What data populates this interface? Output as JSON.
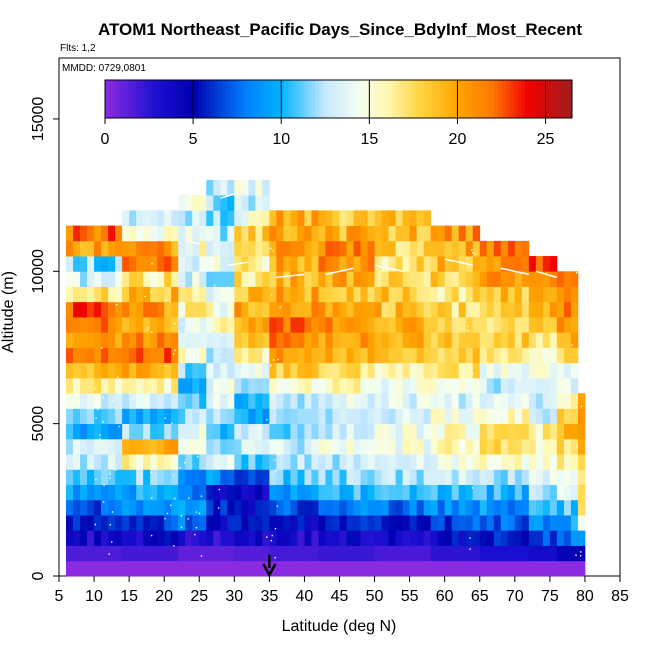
{
  "chart_data": {
    "type": "heatmap",
    "title": "ATOM1 Northeast_Pacific Days_Since_BdyInf_Most_Recent",
    "subtitle_flights": "Flts: 1,2",
    "subtitle_dates": "MMDD: 0729,0801",
    "xlabel": "Latitude (deg N)",
    "ylabel": "Altitude (m)",
    "xlim": [
      5,
      85
    ],
    "ylim": [
      0,
      17000
    ],
    "xticks": [
      5,
      10,
      15,
      20,
      25,
      30,
      35,
      40,
      45,
      50,
      55,
      60,
      65,
      70,
      75,
      80,
      85
    ],
    "yticks": [
      0,
      5000,
      10000,
      15000
    ],
    "colorbar": {
      "range": [
        0,
        26.5
      ],
      "ticks": [
        0,
        5,
        10,
        15,
        20,
        25
      ],
      "stops": [
        {
          "v": 0,
          "color": "#8a2be2"
        },
        {
          "v": 3,
          "color": "#1a0fd0"
        },
        {
          "v": 5,
          "color": "#0000b0"
        },
        {
          "v": 8,
          "color": "#0080ff"
        },
        {
          "v": 10,
          "color": "#00b4ff"
        },
        {
          "v": 12.5,
          "color": "#c8e8ff"
        },
        {
          "v": 14.5,
          "color": "#f4fff0"
        },
        {
          "v": 16,
          "color": "#fff8b0"
        },
        {
          "v": 18,
          "color": "#ffd23c"
        },
        {
          "v": 20,
          "color": "#ffa500"
        },
        {
          "v": 22,
          "color": "#ff7800"
        },
        {
          "v": 24,
          "color": "#f00000"
        },
        {
          "v": 26.5,
          "color": "#a01e1e"
        }
      ]
    },
    "marker": {
      "label": "latitude marker",
      "x": 35
    },
    "columns": [
      {
        "x0": 6,
        "x1": 14,
        "top": 11500,
        "profile": [
          0,
          2.5,
          6,
          8,
          11,
          14,
          9,
          13,
          17,
          22,
          20,
          23,
          15,
          11,
          24,
          18
        ]
      },
      {
        "x0": 14,
        "x1": 22,
        "top": 11800,
        "profile": [
          0,
          3,
          7,
          9,
          12,
          21,
          8,
          13,
          18,
          23,
          19,
          21,
          16,
          24,
          14,
          12
        ]
      },
      {
        "x0": 22,
        "x1": 26,
        "top": 12300,
        "profile": [
          0,
          2,
          10,
          7,
          12,
          15,
          11,
          9,
          16,
          13,
          18,
          12,
          15,
          13,
          17
        ]
      },
      {
        "x0": 26,
        "x1": 30,
        "top": 13000,
        "profile": [
          0,
          2,
          6,
          4,
          14,
          10,
          13,
          14,
          12,
          16,
          15,
          13,
          14,
          12,
          11,
          13
        ]
      },
      {
        "x0": 30,
        "x1": 35,
        "top": 12800,
        "profile": [
          0,
          2.5,
          6,
          4,
          10,
          14,
          9,
          12,
          15,
          19,
          20,
          17,
          16,
          18,
          12,
          14
        ]
      },
      {
        "x0": 35,
        "x1": 42,
        "top": 12000,
        "profile": [
          0,
          3,
          5,
          9,
          12,
          13,
          11,
          13,
          18,
          21,
          22,
          20,
          19,
          21,
          20,
          19
        ]
      },
      {
        "x0": 42,
        "x1": 50,
        "top": 12000,
        "profile": [
          0,
          3.5,
          6,
          10,
          12,
          14,
          12,
          14,
          17,
          20,
          21,
          19,
          20,
          21,
          19,
          18
        ]
      },
      {
        "x0": 50,
        "x1": 58,
        "top": 11800,
        "profile": [
          0,
          3,
          6,
          11,
          13,
          15,
          13,
          14,
          17,
          20,
          19,
          18,
          17,
          19,
          18
        ]
      },
      {
        "x0": 58,
        "x1": 65,
        "top": 11300,
        "profile": [
          0,
          4,
          7,
          10,
          14,
          16,
          15,
          13,
          17,
          19,
          18,
          17,
          18,
          20,
          21
        ]
      },
      {
        "x0": 65,
        "x1": 72,
        "top": 10800,
        "profile": [
          0,
          5,
          8,
          10,
          14,
          18,
          16,
          12,
          15,
          18,
          17,
          19,
          21,
          22
        ]
      },
      {
        "x0": 72,
        "x1": 76,
        "top": 10500,
        "profile": [
          0,
          6,
          9,
          12,
          15,
          17,
          12,
          14,
          16,
          18,
          20,
          22,
          23
        ]
      },
      {
        "x0": 76,
        "x1": 79,
        "top": 9800,
        "profile": [
          0,
          8,
          10,
          14,
          16,
          19,
          17,
          13,
          18,
          21,
          22,
          24
        ]
      },
      {
        "x0": 79,
        "x1": 80,
        "top": 6000,
        "profile": [
          0,
          15,
          18,
          20,
          19
        ]
      }
    ]
  }
}
